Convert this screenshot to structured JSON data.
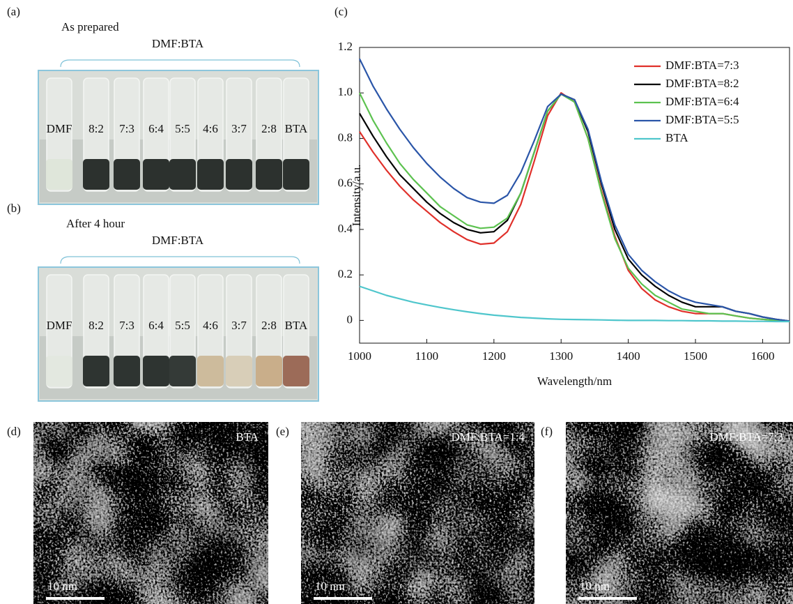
{
  "chart_data": {
    "type": "line",
    "panel_label": "(c)",
    "x_label": "Wavelength/nm",
    "y_label": "Intensity/a.u.",
    "xlim": [
      1000,
      1640
    ],
    "ylim": [
      -0.1,
      1.2
    ],
    "xticks": [
      1000,
      1100,
      1200,
      1300,
      1400,
      1500,
      1600
    ],
    "yticks": [
      0,
      0.2,
      0.4,
      0.6,
      0.8,
      {
        "value": 1,
        "label": "1.0"
      },
      1.2
    ],
    "legend": "upper right",
    "x": [
      1000,
      1020,
      1040,
      1060,
      1080,
      1100,
      1120,
      1140,
      1160,
      1180,
      1200,
      1220,
      1240,
      1260,
      1280,
      1300,
      1320,
      1340,
      1360,
      1380,
      1400,
      1420,
      1440,
      1460,
      1480,
      1500,
      1520,
      1540,
      1560,
      1580,
      1600,
      1620,
      1640
    ],
    "series": [
      {
        "name": "DMF:BTA=7:3",
        "color": "#e0302a",
        "values": [
          0.83,
          0.74,
          0.66,
          0.59,
          0.53,
          0.48,
          0.43,
          0.39,
          0.355,
          0.335,
          0.34,
          0.39,
          0.51,
          0.7,
          0.9,
          1.0,
          0.96,
          0.8,
          0.57,
          0.37,
          0.22,
          0.14,
          0.09,
          0.06,
          0.04,
          0.03,
          0.03,
          0.03,
          0.02,
          0.01,
          0.005,
          0,
          -0.005
        ]
      },
      {
        "name": "DMF:BTA=8:2",
        "color": "#000000",
        "values": [
          0.91,
          0.81,
          0.72,
          0.64,
          0.58,
          0.52,
          0.47,
          0.43,
          0.4,
          0.385,
          0.39,
          0.44,
          0.56,
          0.74,
          0.92,
          0.995,
          0.97,
          0.83,
          0.6,
          0.4,
          0.27,
          0.2,
          0.15,
          0.11,
          0.08,
          0.06,
          0.06,
          0.06,
          0.04,
          0.03,
          0.015,
          0.005,
          -0.003
        ]
      },
      {
        "name": "DMF:BTA=6:4",
        "color": "#5cc24f",
        "values": [
          1.0,
          0.88,
          0.78,
          0.69,
          0.62,
          0.56,
          0.5,
          0.46,
          0.42,
          0.405,
          0.41,
          0.45,
          0.56,
          0.74,
          0.92,
          0.995,
          0.96,
          0.8,
          0.56,
          0.36,
          0.23,
          0.16,
          0.11,
          0.08,
          0.05,
          0.04,
          0.03,
          0.03,
          0.02,
          0.01,
          0.005,
          0,
          -0.005
        ]
      },
      {
        "name": "DMF:BTA=5:5",
        "color": "#2a55a8",
        "values": [
          1.15,
          1.03,
          0.93,
          0.84,
          0.76,
          0.69,
          0.63,
          0.58,
          0.54,
          0.52,
          0.515,
          0.55,
          0.65,
          0.79,
          0.94,
          0.995,
          0.97,
          0.84,
          0.61,
          0.42,
          0.29,
          0.22,
          0.17,
          0.13,
          0.1,
          0.08,
          0.07,
          0.06,
          0.04,
          0.03,
          0.015,
          0.005,
          -0.003
        ]
      },
      {
        "name": "BTA",
        "color": "#4fc6cc",
        "values": [
          0.15,
          0.13,
          0.11,
          0.095,
          0.08,
          0.068,
          0.057,
          0.047,
          0.038,
          0.03,
          0.023,
          0.018,
          0.013,
          0.01,
          0.007,
          0.005,
          0.004,
          0.003,
          0.002,
          0.001,
          0,
          0,
          0,
          -0.001,
          -0.001,
          -0.002,
          -0.002,
          -0.003,
          -0.003,
          -0.004,
          -0.004,
          -0.005,
          -0.005
        ]
      }
    ]
  },
  "photos": [
    {
      "label": "(a)",
      "title": "As prepared",
      "group": "DMF:BTA",
      "samples": [
        "DMF",
        "8:2",
        "7:3",
        "6:4",
        "5:5",
        "4:6",
        "3:7",
        "2:8",
        "BTA"
      ]
    },
    {
      "label": "(b)",
      "title": "After 4 hour",
      "group": "DMF:BTA",
      "samples": [
        "DMF",
        "8:2",
        "7:3",
        "6:4",
        "5:5",
        "4:6",
        "3:7",
        "2:8",
        "BTA"
      ]
    }
  ],
  "tem": [
    {
      "label": "(d)",
      "caption": "BTA",
      "scale": "10 nm"
    },
    {
      "label": "(e)",
      "caption": "DMF:BTA=1:4",
      "scale": "10 nm"
    },
    {
      "label": "(f)",
      "caption": "DMF:BTA=7:3",
      "scale": "10 nm"
    }
  ]
}
